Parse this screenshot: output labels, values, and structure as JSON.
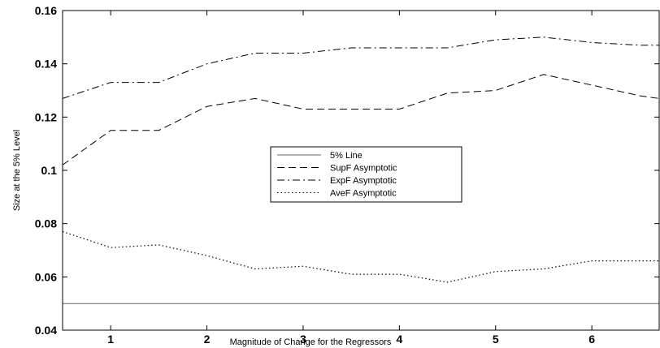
{
  "chart_data": {
    "type": "line",
    "title": "",
    "xlabel": "Magnitude of Change for the Regressors",
    "ylabel": "Size at the 5% Level",
    "xlim": [
      0.5,
      6.7
    ],
    "ylim": [
      0.04,
      0.16
    ],
    "xticks": [
      1,
      2,
      3,
      4,
      5,
      6
    ],
    "xtick_labels": [
      "1",
      "2",
      "3",
      "4",
      "5",
      "6"
    ],
    "yticks": [
      0.04,
      0.06,
      0.08,
      0.1,
      0.12,
      0.14,
      0.16
    ],
    "ytick_labels": [
      "0.04",
      "0.06",
      "0.08",
      "0.1",
      "0.12",
      "0.14",
      "0.16"
    ],
    "grid": false,
    "legend_position": "center",
    "x": [
      0.5,
      1.0,
      1.5,
      2.0,
      2.5,
      3.0,
      3.5,
      4.0,
      4.5,
      5.0,
      5.5,
      6.0,
      6.5,
      6.7
    ],
    "series": [
      {
        "name": "5% Line",
        "dash": "solid",
        "values": [
          0.05,
          0.05,
          0.05,
          0.05,
          0.05,
          0.05,
          0.05,
          0.05,
          0.05,
          0.05,
          0.05,
          0.05,
          0.05,
          0.05
        ]
      },
      {
        "name": "SupF Asymptotic",
        "dash": "dashed",
        "values": [
          0.102,
          0.115,
          0.115,
          0.124,
          0.127,
          0.123,
          0.123,
          0.123,
          0.129,
          0.13,
          0.136,
          0.132,
          0.128,
          0.127
        ]
      },
      {
        "name": "ExpF Asymptotic",
        "dash": "dashdot",
        "values": [
          0.127,
          0.133,
          0.133,
          0.14,
          0.144,
          0.144,
          0.146,
          0.146,
          0.146,
          0.149,
          0.15,
          0.148,
          0.147,
          0.147
        ]
      },
      {
        "name": "AveF Asymptotic",
        "dash": "dotted",
        "values": [
          0.077,
          0.071,
          0.072,
          0.068,
          0.063,
          0.064,
          0.061,
          0.061,
          0.058,
          0.062,
          0.063,
          0.066,
          0.066,
          0.066
        ]
      }
    ]
  }
}
